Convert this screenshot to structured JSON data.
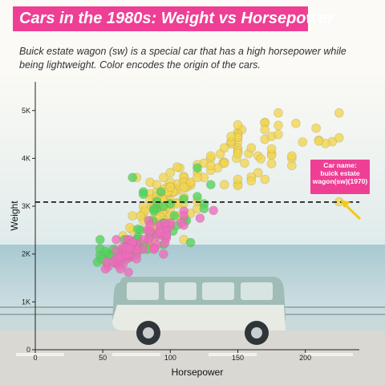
{
  "title": "Cars in the 1980s: Weight vs Horsepower",
  "subtitle": "Buick estate wagon (sw) is a special car that has a high horsepower while being lightweight. Color encodes the origin of the cars.",
  "colors": {
    "title_bg": "#ee3f95",
    "usa": "#f2d54e",
    "europe": "#4fd35a",
    "japan": "#f06abf",
    "annotation_bg": "#ee3f95",
    "arrow": "#f2c81f",
    "reference_line": "#111111"
  },
  "chart_data": {
    "type": "scatter",
    "xlabel": "Horsepower",
    "ylabel": "Weight",
    "xlim": [
      0,
      240
    ],
    "ylim": [
      0,
      5600
    ],
    "x_ticks": [
      0,
      50,
      100,
      150,
      200
    ],
    "y_ticks": [
      0,
      1000,
      2000,
      3000,
      4000,
      5000
    ],
    "y_tick_labels": [
      "0",
      "1K",
      "2K",
      "3K",
      "4K",
      "5K"
    ],
    "grid": false,
    "reference_line": {
      "axis": "y",
      "value": 3086,
      "style": "dashed"
    },
    "annotation": {
      "label": "Car name: buick estate wagon(sw)(1970)",
      "lines": [
        "Car name:",
        "buick estate",
        "wagon(sw)(1970)"
      ],
      "x": 225,
      "y": 3086
    },
    "series": [
      {
        "points": [
          [
            150,
            4350
          ],
          [
            165,
            3700
          ],
          [
            150,
            3450
          ],
          [
            150,
            3430
          ],
          [
            140,
            3450
          ],
          [
            198,
            4340
          ],
          [
            220,
            4350
          ],
          [
            215,
            4310
          ],
          [
            225,
            4430
          ],
          [
            190,
            3850
          ],
          [
            170,
            3560
          ],
          [
            160,
            3610
          ],
          [
            150,
            3560
          ],
          [
            225,
            3090
          ],
          [
            95,
            2830
          ],
          [
            97,
            2770
          ],
          [
            85,
            2590
          ],
          [
            90,
            2650
          ],
          [
            100,
            2640
          ],
          [
            105,
            3070
          ],
          [
            210,
            4380
          ],
          [
            210,
            4360
          ],
          [
            193,
            4730
          ],
          [
            88,
            3140
          ],
          [
            110,
            2800
          ],
          [
            100,
            3290
          ],
          [
            105,
            3350
          ],
          [
            100,
            3290
          ],
          [
            88,
            2960
          ],
          [
            180,
            4950
          ],
          [
            170,
            4750
          ],
          [
            175,
            4100
          ],
          [
            165,
            4050
          ],
          [
            170,
            4400
          ],
          [
            175,
            4460
          ],
          [
            150,
            4550
          ],
          [
            153,
            4600
          ],
          [
            150,
            4450
          ],
          [
            208,
            4630
          ],
          [
            155,
            3900
          ],
          [
            160,
            3530
          ],
          [
            190,
            4000
          ],
          [
            97,
            3200
          ],
          [
            150,
            4220
          ],
          [
            158,
            4100
          ],
          [
            167,
            3990
          ],
          [
            225,
            4950
          ],
          [
            175,
            4060
          ],
          [
            175,
            3890
          ],
          [
            145,
            4350
          ],
          [
            137,
            4090
          ],
          [
            175,
            4200
          ],
          [
            150,
            4130
          ],
          [
            170,
            4740
          ],
          [
            180,
            4500
          ],
          [
            190,
            4050
          ],
          [
            95,
            2880
          ],
          [
            88,
            3050
          ],
          [
            100,
            3340
          ],
          [
            72,
            2800
          ],
          [
            86,
            2990
          ],
          [
            80,
            3000
          ],
          [
            115,
            3470
          ],
          [
            107,
            3800
          ],
          [
            145,
            4300
          ],
          [
            150,
            4700
          ],
          [
            110,
            3620
          ],
          [
            105,
            3460
          ],
          [
            100,
            3120
          ],
          [
            150,
            4500
          ],
          [
            180,
            4690
          ],
          [
            145,
            4350
          ],
          [
            130,
            4000
          ],
          [
            150,
            4160
          ],
          [
            105,
            3820
          ],
          [
            85,
            3260
          ],
          [
            110,
            3520
          ],
          [
            120,
            3870
          ],
          [
            140,
            4220
          ],
          [
            150,
            4440
          ],
          [
            139,
            3900
          ],
          [
            149,
            4000
          ],
          [
            170,
            4600
          ],
          [
            125,
            3600
          ],
          [
            105,
            3350
          ],
          [
            115,
            3440
          ],
          [
            110,
            3600
          ],
          [
            98,
            3410
          ],
          [
            145,
            4460
          ],
          [
            120,
            3700
          ],
          [
            130,
            4050
          ],
          [
            100,
            3410
          ],
          [
            103,
            3300
          ],
          [
            90,
            3100
          ],
          [
            95,
            3350
          ],
          [
            100,
            3500
          ],
          [
            112,
            3400
          ],
          [
            135,
            3800
          ],
          [
            160,
            4220
          ],
          [
            125,
            3900
          ],
          [
            150,
            4100
          ],
          [
            140,
            3920
          ],
          [
            130,
            3750
          ],
          [
            110,
            3060
          ],
          [
            105,
            3050
          ],
          [
            95,
            3200
          ],
          [
            95,
            3100
          ],
          [
            90,
            3300
          ],
          [
            102,
            3300
          ],
          [
            98,
            3300
          ],
          [
            85,
            3500
          ],
          [
            95,
            3000
          ],
          [
            100,
            2950
          ],
          [
            88,
            3000
          ],
          [
            80,
            2850
          ],
          [
            94,
            3150
          ],
          [
            72,
            2500
          ],
          [
            100,
            3400
          ],
          [
            88,
            2900
          ],
          [
            90,
            2450
          ],
          [
            84,
            2700
          ],
          [
            97,
            3000
          ],
          [
            95,
            3600
          ],
          [
            80,
            2700
          ],
          [
            110,
            3500
          ],
          [
            120,
            3600
          ],
          [
            85,
            2250
          ],
          [
            100,
            2600
          ],
          [
            110,
            2300
          ],
          [
            85,
            3140
          ],
          [
            75,
            3600
          ],
          [
            90,
            3200
          ],
          [
            115,
            2850
          ],
          [
            105,
            2800
          ],
          [
            100,
            3700
          ],
          [
            112,
            3400
          ],
          [
            88,
            2750
          ],
          [
            81,
            2900
          ],
          [
            70,
            2550
          ],
          [
            78,
            2800
          ],
          [
            120,
            2950
          ],
          [
            115,
            3500
          ],
          [
            65,
            2380
          ],
          [
            110,
            3400
          ],
          [
            90,
            3450
          ],
          [
            88,
            2650
          ],
          [
            130,
            3850
          ],
          [
            140,
            3900
          ],
          [
            92,
            2930
          ],
          [
            98,
            2600
          ],
          [
            95,
            2380
          ],
          [
            80,
            2190
          ],
          [
            100,
            3050
          ],
          [
            87,
            2600
          ],
          [
            92,
            2800
          ],
          [
            84,
            2450
          ],
          [
            90,
            2900
          ],
          [
            110,
            3200
          ],
          [
            120,
            3100
          ],
          [
            95,
            2700
          ],
          [
            100,
            2800
          ],
          [
            75,
            2100
          ],
          [
            85,
            2120
          ],
          [
            90,
            2420
          ],
          [
            88,
            2200
          ],
          [
            63,
            2050
          ]
        ]
      },
      {
        "points": [
          [
            90,
            2400
          ],
          [
            95,
            2200
          ],
          [
            87,
            2700
          ],
          [
            90,
            2950
          ],
          [
            95,
            2650
          ],
          [
            46,
            1830
          ],
          [
            85,
            2400
          ],
          [
            70,
            2200
          ],
          [
            76,
            2350
          ],
          [
            60,
            1850
          ],
          [
            48,
            1980
          ],
          [
            54,
            2000
          ],
          [
            75,
            2300
          ],
          [
            71,
            2220
          ],
          [
            49,
            1900
          ],
          [
            67,
            2100
          ],
          [
            102,
            2480
          ],
          [
            88,
            2950
          ],
          [
            48,
            2300
          ],
          [
            112,
            2700
          ],
          [
            71,
            1950
          ],
          [
            63,
            2050
          ],
          [
            83,
            2100
          ],
          [
            80,
            2200
          ],
          [
            78,
            2500
          ],
          [
            76,
            2300
          ],
          [
            115,
            2240
          ],
          [
            48,
            2110
          ],
          [
            95,
            2650
          ],
          [
            120,
            3800
          ],
          [
            74,
            2060
          ],
          [
            110,
            2700
          ],
          [
            58,
            2100
          ],
          [
            53,
            1800
          ],
          [
            76,
            2520
          ],
          [
            62,
            2000
          ],
          [
            77,
            2150
          ],
          [
            66,
            2300
          ],
          [
            55,
            1950
          ],
          [
            67,
            2000
          ],
          [
            68,
            2180
          ],
          [
            105,
            2600
          ],
          [
            88,
            2900
          ],
          [
            103,
            2800
          ],
          [
            70,
            1970
          ],
          [
            74,
            1980
          ],
          [
            78,
            2100
          ],
          [
            120,
            3200
          ],
          [
            80,
            3300
          ],
          [
            125,
            3050
          ],
          [
            72,
            3600
          ],
          [
            93,
            3300
          ],
          [
            65,
            1900
          ],
          [
            52,
            2050
          ],
          [
            80,
            3250
          ],
          [
            95,
            3000
          ],
          [
            130,
            3450
          ],
          [
            90,
            3100
          ],
          [
            100,
            3050
          ],
          [
            72,
            2000
          ],
          [
            98,
            2600
          ],
          [
            110,
            3150
          ],
          [
            125,
            2950
          ]
        ]
      },
      {
        "points": [
          [
            95,
            2370
          ],
          [
            88,
            2130
          ],
          [
            88,
            2120
          ],
          [
            97,
            2500
          ],
          [
            97,
            2370
          ],
          [
            65,
            1780
          ],
          [
            69,
            1620
          ],
          [
            60,
            1800
          ],
          [
            70,
            1940
          ],
          [
            95,
            2000
          ],
          [
            80,
            2100
          ],
          [
            54,
            1740
          ],
          [
            90,
            2200
          ],
          [
            97,
            2420
          ],
          [
            75,
            2200
          ],
          [
            93,
            2600
          ],
          [
            75,
            1990
          ],
          [
            68,
            2300
          ],
          [
            67,
            1950
          ],
          [
            97,
            2330
          ],
          [
            110,
            2600
          ],
          [
            52,
            1690
          ],
          [
            70,
            1950
          ],
          [
            60,
            1800
          ],
          [
            65,
            2000
          ],
          [
            75,
            2120
          ],
          [
            53,
            1840
          ],
          [
            68,
            1900
          ],
          [
            58,
            1840
          ],
          [
            62,
            1760
          ],
          [
            65,
            1950
          ],
          [
            60,
            2070
          ],
          [
            67,
            2000
          ],
          [
            68,
            2030
          ],
          [
            75,
            2200
          ],
          [
            88,
            2100
          ],
          [
            92,
            2600
          ],
          [
            97,
            2400
          ],
          [
            100,
            2580
          ],
          [
            60,
            1900
          ],
          [
            65,
            2100
          ],
          [
            65,
            2050
          ],
          [
            68,
            2150
          ],
          [
            84,
            2280
          ],
          [
            84,
            2330
          ],
          [
            75,
            1900
          ],
          [
            63,
            1690
          ],
          [
            122,
            2750
          ],
          [
            110,
            2900
          ],
          [
            132,
            2910
          ],
          [
            96,
            2230
          ],
          [
            90,
            2450
          ],
          [
            70,
            1970
          ],
          [
            80,
            2300
          ],
          [
            70,
            2200
          ],
          [
            69,
            2000
          ],
          [
            65,
            2150
          ],
          [
            97,
            2550
          ],
          [
            70,
            2160
          ],
          [
            84,
            2700
          ],
          [
            68,
            2100
          ],
          [
            83,
            2500
          ],
          [
            90,
            2370
          ],
          [
            67,
            1980
          ],
          [
            62,
            1920
          ],
          [
            70,
            2300
          ],
          [
            75,
            2100
          ],
          [
            100,
            2650
          ],
          [
            110,
            2800
          ],
          [
            92,
            2450
          ],
          [
            96,
            2640
          ],
          [
            85,
            2480
          ],
          [
            72,
            2230
          ],
          [
            108,
            2650
          ],
          [
            60,
            2300
          ],
          [
            72,
            2250
          ],
          [
            85,
            2600
          ],
          [
            67,
            2130
          ],
          [
            70,
            2120
          ]
        ]
      }
    ]
  }
}
